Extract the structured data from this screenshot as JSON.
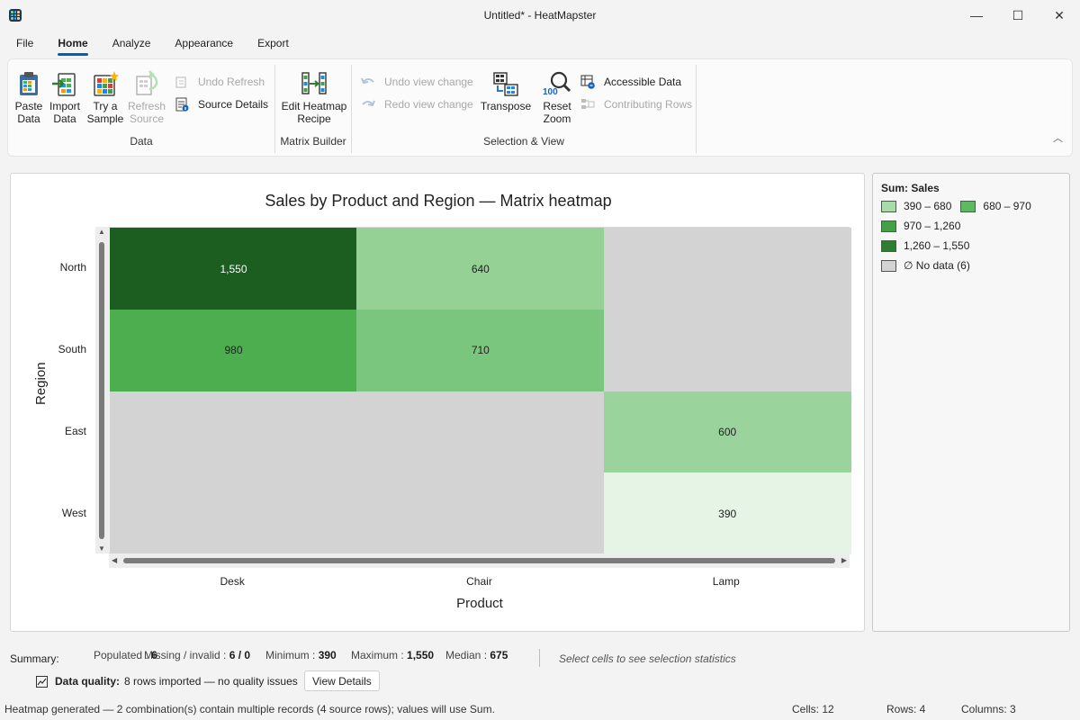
{
  "window": {
    "title": "Untitled* - HeatMapster",
    "minimize": "—",
    "maximize": "☐",
    "close": "✕"
  },
  "menu": {
    "tabs": [
      "File",
      "Home",
      "Analyze",
      "Appearance",
      "Export"
    ],
    "active": "Home"
  },
  "ribbon": {
    "groups": {
      "data": "Data",
      "matrix": "Matrix Builder",
      "selection": "Selection & View"
    },
    "paste": [
      "Paste",
      "Data"
    ],
    "import": [
      "Import",
      "Data"
    ],
    "sample": [
      "Try a",
      "Sample"
    ],
    "refresh": [
      "Refresh",
      "Source"
    ],
    "undo_refresh": "Undo Refresh",
    "source_details": "Source Details",
    "edit_recipe": [
      "Edit Heatmap",
      "Recipe"
    ],
    "undo_view": "Undo view change",
    "redo_view": "Redo view change",
    "transpose": "Transpose",
    "reset_zoom": [
      "Reset",
      "Zoom"
    ],
    "zoom_badge": "100",
    "accessible_data": "Accessible Data",
    "contributing_rows": "Contributing Rows"
  },
  "chart_data": {
    "type": "heatmap",
    "title": "Sales by Product and Region — Matrix heatmap",
    "xlabel": "Product",
    "ylabel": "Region",
    "x": [
      "Desk",
      "Chair",
      "Lamp"
    ],
    "y": [
      "North",
      "South",
      "East",
      "West"
    ],
    "values": [
      [
        1550,
        640,
        null
      ],
      [
        980,
        710,
        null
      ],
      [
        null,
        null,
        600
      ],
      [
        null,
        null,
        390
      ]
    ],
    "labels": [
      [
        "1,550",
        "640",
        ""
      ],
      [
        "980",
        "710",
        ""
      ],
      [
        "",
        "",
        "600"
      ],
      [
        "",
        "",
        "390"
      ]
    ],
    "cell_colors": [
      [
        "#1b5e20",
        "#95d095",
        "#d3d3d3"
      ],
      [
        "#4cae4f",
        "#7bc67e",
        "#d3d3d3"
      ],
      [
        "#d3d3d3",
        "#d3d3d3",
        "#9bd39d"
      ],
      [
        "#d3d3d3",
        "#d3d3d3",
        "#e6f4e6"
      ]
    ],
    "text_colors": [
      [
        "#ffffff",
        "#1f1f1f",
        "#1f1f1f"
      ],
      [
        "#1f1f1f",
        "#1f1f1f",
        "#1f1f1f"
      ],
      [
        "#1f1f1f",
        "#1f1f1f",
        "#1f1f1f"
      ],
      [
        "#1f1f1f",
        "#1f1f1f",
        "#1f1f1f"
      ]
    ],
    "legend": {
      "title": "Sum: Sales",
      "items": [
        {
          "label": "390 – 680",
          "color": "#a8dba8"
        },
        {
          "label": "680 – 970",
          "color": "#5fb862"
        },
        {
          "label": "970 – 1,260",
          "color": "#43a047"
        },
        {
          "label": "1,260 – 1,550",
          "color": "#2e7d32"
        },
        {
          "label": "∅ No data (6)",
          "color": "#d3d3d3"
        }
      ]
    }
  },
  "summary": {
    "label": "Summary:",
    "populated": {
      "label": "Populated :",
      "value": "6"
    },
    "missing": {
      "label": "Missing / invalid :",
      "value": "6 / 0"
    },
    "minimum": {
      "label": "Minimum :",
      "value": "390"
    },
    "maximum": {
      "label": "Maximum :",
      "value": "1,550"
    },
    "median": {
      "label": "Median :",
      "value": "675"
    },
    "selection_hint": "Select cells to see selection statistics"
  },
  "quality": {
    "label": "Data quality:",
    "text": "8 rows imported — no quality issues",
    "button": "View Details"
  },
  "status": {
    "message": "Heatmap generated — 2 combination(s) contain multiple records (4 source rows); values will use Sum.",
    "cells": "Cells: 12",
    "rows": "Rows: 4",
    "columns": "Columns: 3"
  }
}
